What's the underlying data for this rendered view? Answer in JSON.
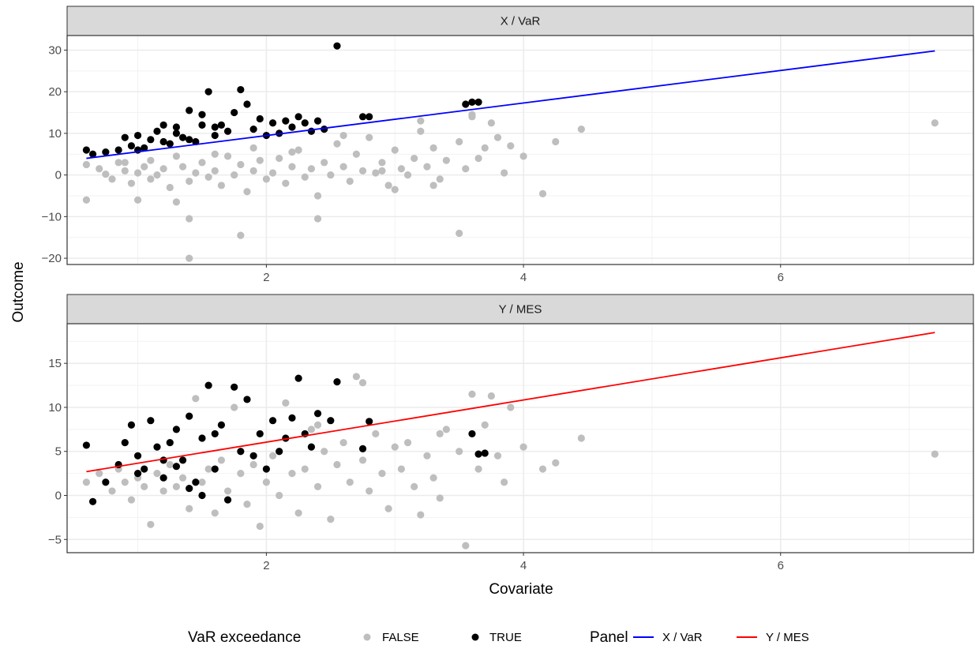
{
  "chart_data": {
    "type": "scatter",
    "xlabel": "Covariate",
    "ylabel": "Outcome",
    "x_ticks": [
      2,
      4,
      6
    ],
    "xlim": [
      0.45,
      7.5
    ],
    "grid": true,
    "legend_position": "bottom",
    "legend": {
      "color_title": "VaR exceedance",
      "color_entries": [
        {
          "label": "FALSE",
          "color": "#bebebe"
        },
        {
          "label": "TRUE",
          "color": "#000000"
        }
      ],
      "line_title": "Panel",
      "line_entries": [
        {
          "label": "X / VaR",
          "color": "#0000ff"
        },
        {
          "label": "Y / MES",
          "color": "#ff0000"
        }
      ]
    },
    "panels": [
      {
        "title": "X / VaR",
        "ylim": [
          -21.5,
          33.5
        ],
        "y_ticks": [
          -20,
          -10,
          0,
          10,
          20,
          30
        ],
        "fit_line": {
          "color": "#0000ff",
          "x": [
            0.6,
            7.2
          ],
          "y": [
            4.0,
            29.8
          ]
        },
        "points_false": [
          [
            0.6,
            2.5
          ],
          [
            0.6,
            -6.0
          ],
          [
            0.7,
            1.5
          ],
          [
            0.75,
            0.2
          ],
          [
            0.8,
            -1.0
          ],
          [
            0.85,
            3.0
          ],
          [
            0.9,
            1.0
          ],
          [
            0.95,
            -2.0
          ],
          [
            1.0,
            0.5
          ],
          [
            1.0,
            -6.0
          ],
          [
            1.05,
            2.0
          ],
          [
            1.1,
            -1.0
          ],
          [
            1.15,
            0.0
          ],
          [
            1.2,
            1.5
          ],
          [
            1.25,
            -3.0
          ],
          [
            1.3,
            -6.5
          ],
          [
            1.35,
            2.0
          ],
          [
            1.4,
            -1.5
          ],
          [
            1.45,
            0.5
          ],
          [
            1.5,
            3.0
          ],
          [
            1.55,
            -0.5
          ],
          [
            1.6,
            1.0
          ],
          [
            1.65,
            -2.5
          ],
          [
            1.7,
            4.5
          ],
          [
            1.75,
            0.0
          ],
          [
            1.8,
            2.5
          ],
          [
            1.85,
            -4.0
          ],
          [
            1.9,
            1.0
          ],
          [
            1.95,
            3.5
          ],
          [
            2.0,
            -1.0
          ],
          [
            2.05,
            0.5
          ],
          [
            2.1,
            4.0
          ],
          [
            2.15,
            -2.0
          ],
          [
            2.2,
            2.0
          ],
          [
            2.25,
            6.0
          ],
          [
            2.3,
            -0.5
          ],
          [
            2.35,
            1.5
          ],
          [
            2.4,
            -5.0
          ],
          [
            2.45,
            3.0
          ],
          [
            2.5,
            0.0
          ],
          [
            2.55,
            7.5
          ],
          [
            2.6,
            2.0
          ],
          [
            2.65,
            -1.5
          ],
          [
            2.7,
            5.0
          ],
          [
            2.75,
            1.0
          ],
          [
            2.8,
            9.0
          ],
          [
            2.85,
            0.5
          ],
          [
            2.9,
            3.0
          ],
          [
            2.95,
            -2.5
          ],
          [
            3.0,
            6.0
          ],
          [
            3.05,
            1.5
          ],
          [
            3.1,
            0.0
          ],
          [
            3.15,
            4.0
          ],
          [
            3.2,
            10.5
          ],
          [
            3.25,
            2.0
          ],
          [
            3.3,
            6.5
          ],
          [
            3.35,
            -1.0
          ],
          [
            3.4,
            3.5
          ],
          [
            3.5,
            8.0
          ],
          [
            3.55,
            1.5
          ],
          [
            3.6,
            14.0
          ],
          [
            3.65,
            4.0
          ],
          [
            3.7,
            6.5
          ],
          [
            3.75,
            12.5
          ],
          [
            3.8,
            9.0
          ],
          [
            3.85,
            0.5
          ],
          [
            3.9,
            7.0
          ],
          [
            4.0,
            4.5
          ],
          [
            4.15,
            -4.5
          ],
          [
            4.25,
            8.0
          ],
          [
            4.45,
            11.0
          ],
          [
            7.2,
            12.5
          ],
          [
            1.4,
            -10.5
          ],
          [
            1.4,
            -20.0
          ],
          [
            1.8,
            -14.5
          ],
          [
            2.4,
            -10.5
          ],
          [
            3.5,
            -14.0
          ],
          [
            3.3,
            -2.5
          ],
          [
            3.0,
            -3.5
          ],
          [
            2.9,
            1.0
          ],
          [
            2.6,
            9.5
          ],
          [
            3.2,
            13.0
          ],
          [
            3.6,
            14.5
          ],
          [
            2.2,
            5.5
          ],
          [
            1.9,
            6.5
          ],
          [
            1.6,
            5.0
          ],
          [
            1.3,
            4.5
          ],
          [
            1.1,
            3.5
          ],
          [
            0.9,
            3.0
          ]
        ],
        "points_true": [
          [
            0.6,
            6.0
          ],
          [
            0.65,
            5.0
          ],
          [
            0.75,
            5.5
          ],
          [
            0.85,
            6.0
          ],
          [
            0.9,
            9.0
          ],
          [
            0.95,
            7.0
          ],
          [
            1.0,
            9.5
          ],
          [
            1.05,
            6.5
          ],
          [
            1.1,
            8.5
          ],
          [
            1.15,
            10.5
          ],
          [
            1.2,
            12.0
          ],
          [
            1.25,
            7.5
          ],
          [
            1.3,
            11.5
          ],
          [
            1.35,
            9.0
          ],
          [
            1.4,
            15.5
          ],
          [
            1.45,
            8.0
          ],
          [
            1.5,
            14.5
          ],
          [
            1.55,
            20.0
          ],
          [
            1.6,
            9.5
          ],
          [
            1.65,
            12.0
          ],
          [
            1.7,
            10.5
          ],
          [
            1.75,
            15.0
          ],
          [
            1.8,
            20.5
          ],
          [
            1.85,
            17.0
          ],
          [
            1.9,
            11.0
          ],
          [
            1.95,
            13.5
          ],
          [
            2.0,
            9.5
          ],
          [
            2.05,
            12.5
          ],
          [
            2.1,
            10.0
          ],
          [
            2.15,
            13.0
          ],
          [
            2.2,
            11.5
          ],
          [
            2.25,
            14.0
          ],
          [
            2.3,
            12.5
          ],
          [
            2.35,
            10.5
          ],
          [
            2.4,
            13.0
          ],
          [
            2.45,
            11.0
          ],
          [
            2.55,
            31.0
          ],
          [
            2.75,
            14.0
          ],
          [
            2.8,
            14.0
          ],
          [
            3.55,
            17.0
          ],
          [
            3.6,
            17.5
          ],
          [
            3.65,
            17.5
          ],
          [
            1.0,
            6.0
          ],
          [
            1.2,
            8.0
          ],
          [
            1.4,
            8.5
          ],
          [
            1.6,
            11.5
          ],
          [
            1.3,
            10.0
          ],
          [
            1.5,
            12.0
          ]
        ]
      },
      {
        "title": "Y / MES",
        "ylim": [
          -6.5,
          19.5
        ],
        "y_ticks": [
          -5,
          0,
          5,
          10,
          15
        ],
        "fit_line": {
          "color": "#ff0000",
          "x": [
            0.6,
            7.2
          ],
          "y": [
            2.7,
            18.5
          ]
        },
        "points_false": [
          [
            0.6,
            1.5
          ],
          [
            0.7,
            2.5
          ],
          [
            0.8,
            0.5
          ],
          [
            0.85,
            3.0
          ],
          [
            0.9,
            1.5
          ],
          [
            0.95,
            -0.5
          ],
          [
            1.0,
            2.0
          ],
          [
            1.05,
            1.0
          ],
          [
            1.1,
            -3.3
          ],
          [
            1.15,
            2.5
          ],
          [
            1.2,
            0.5
          ],
          [
            1.25,
            3.5
          ],
          [
            1.3,
            1.0
          ],
          [
            1.35,
            2.0
          ],
          [
            1.4,
            -1.5
          ],
          [
            1.45,
            11.0
          ],
          [
            1.5,
            1.5
          ],
          [
            1.55,
            3.0
          ],
          [
            1.6,
            -2.0
          ],
          [
            1.65,
            4.0
          ],
          [
            1.7,
            0.5
          ],
          [
            1.75,
            10.0
          ],
          [
            1.8,
            2.5
          ],
          [
            1.85,
            -1.0
          ],
          [
            1.9,
            3.5
          ],
          [
            1.95,
            -3.5
          ],
          [
            2.0,
            1.5
          ],
          [
            2.05,
            4.5
          ],
          [
            2.1,
            0.0
          ],
          [
            2.15,
            10.5
          ],
          [
            2.2,
            2.5
          ],
          [
            2.25,
            -2.0
          ],
          [
            2.3,
            3.0
          ],
          [
            2.35,
            7.5
          ],
          [
            2.4,
            1.0
          ],
          [
            2.45,
            5.0
          ],
          [
            2.5,
            -2.7
          ],
          [
            2.55,
            3.5
          ],
          [
            2.6,
            6.0
          ],
          [
            2.65,
            1.5
          ],
          [
            2.7,
            13.5
          ],
          [
            2.75,
            4.0
          ],
          [
            2.8,
            0.5
          ],
          [
            2.85,
            7.0
          ],
          [
            2.9,
            2.5
          ],
          [
            2.95,
            -1.5
          ],
          [
            3.0,
            5.5
          ],
          [
            3.05,
            3.0
          ],
          [
            3.1,
            6.0
          ],
          [
            3.15,
            1.0
          ],
          [
            3.2,
            -2.2
          ],
          [
            3.25,
            4.5
          ],
          [
            3.3,
            2.0
          ],
          [
            3.35,
            -0.3
          ],
          [
            3.4,
            7.5
          ],
          [
            3.5,
            5.0
          ],
          [
            3.55,
            -5.7
          ],
          [
            3.6,
            11.5
          ],
          [
            3.65,
            3.0
          ],
          [
            3.7,
            8.0
          ],
          [
            3.75,
            11.3
          ],
          [
            3.8,
            4.5
          ],
          [
            3.85,
            1.5
          ],
          [
            3.9,
            10.0
          ],
          [
            4.0,
            5.5
          ],
          [
            4.15,
            3.0
          ],
          [
            4.25,
            3.7
          ],
          [
            4.45,
            6.5
          ],
          [
            7.2,
            4.7
          ],
          [
            3.35,
            7.0
          ],
          [
            2.75,
            12.8
          ],
          [
            2.4,
            8.0
          ]
        ],
        "points_true": [
          [
            0.6,
            5.7
          ],
          [
            0.65,
            -0.7
          ],
          [
            0.75,
            1.5
          ],
          [
            0.85,
            3.5
          ],
          [
            0.9,
            6.0
          ],
          [
            0.95,
            8.0
          ],
          [
            1.0,
            4.5
          ],
          [
            1.05,
            3.0
          ],
          [
            1.1,
            8.5
          ],
          [
            1.15,
            5.5
          ],
          [
            1.2,
            2.0
          ],
          [
            1.25,
            6.0
          ],
          [
            1.3,
            7.5
          ],
          [
            1.35,
            4.0
          ],
          [
            1.4,
            9.0
          ],
          [
            1.45,
            1.5
          ],
          [
            1.5,
            6.5
          ],
          [
            1.55,
            12.5
          ],
          [
            1.6,
            3.0
          ],
          [
            1.65,
            8.0
          ],
          [
            1.7,
            -0.5
          ],
          [
            1.75,
            12.3
          ],
          [
            1.8,
            5.0
          ],
          [
            1.85,
            10.9
          ],
          [
            1.9,
            4.5
          ],
          [
            1.95,
            7.0
          ],
          [
            2.0,
            3.0
          ],
          [
            2.05,
            8.5
          ],
          [
            2.1,
            5.0
          ],
          [
            2.15,
            6.5
          ],
          [
            2.2,
            8.8
          ],
          [
            2.25,
            13.3
          ],
          [
            2.3,
            7.0
          ],
          [
            2.35,
            5.5
          ],
          [
            2.4,
            9.3
          ],
          [
            2.5,
            8.5
          ],
          [
            2.55,
            12.9
          ],
          [
            2.75,
            5.3
          ],
          [
            2.8,
            8.4
          ],
          [
            3.6,
            7.0
          ],
          [
            3.65,
            4.7
          ],
          [
            3.7,
            4.8
          ],
          [
            1.0,
            2.5
          ],
          [
            1.2,
            4.0
          ],
          [
            1.4,
            0.8
          ],
          [
            1.6,
            7.0
          ],
          [
            1.3,
            3.3
          ],
          [
            1.5,
            0.0
          ]
        ]
      }
    ]
  }
}
